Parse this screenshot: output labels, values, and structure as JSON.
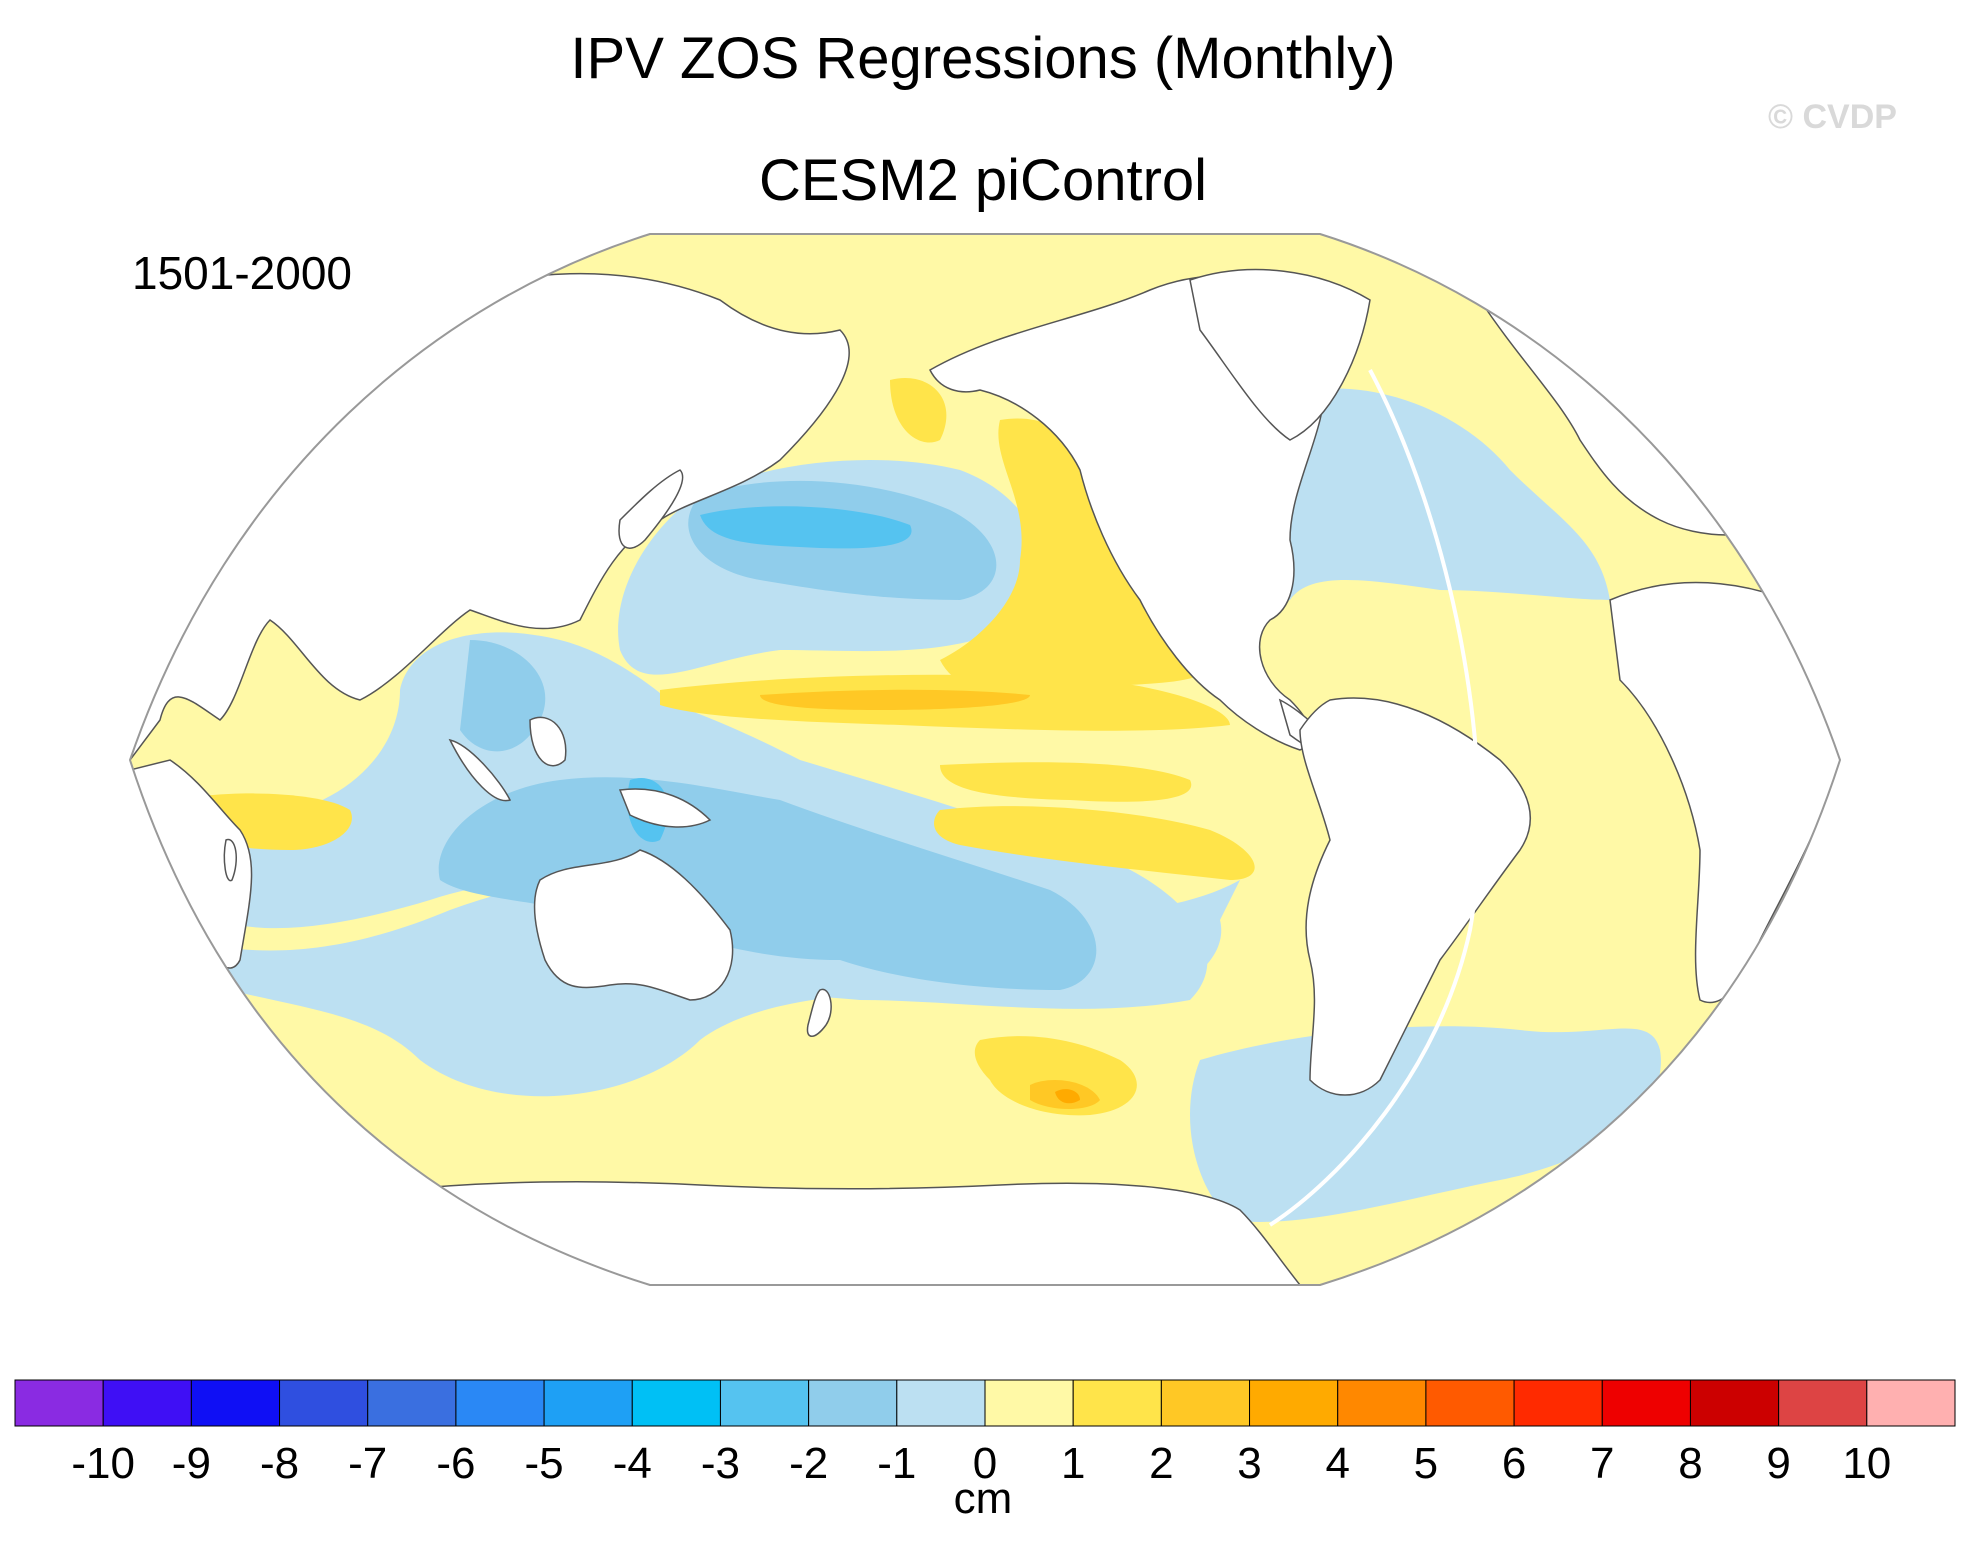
{
  "title": "IPV ZOS Regressions (Monthly)",
  "subtitle": "CESM2 piControl",
  "period": "1501-2000",
  "watermark": "© CVDP",
  "colorbar": {
    "units": "cm",
    "ticks": [
      "-10",
      "-9",
      "-8",
      "-7",
      "-6",
      "-5",
      "-4",
      "-3",
      "-2",
      "-1",
      "0",
      "1",
      "2",
      "3",
      "4",
      "5",
      "6",
      "7",
      "8",
      "9",
      "10"
    ],
    "colors": [
      "#8a2be2",
      "#3f0ff5",
      "#0f0ff5",
      "#2f4fe0",
      "#3a6fe0",
      "#2a88f5",
      "#1ea0f5",
      "#00c0f5",
      "#55c3f0",
      "#90cdeb",
      "#bce0f2",
      "#fff9a6",
      "#ffe44a",
      "#ffc825",
      "#ffaa00",
      "#ff8800",
      "#ff5a00",
      "#ff2a00",
      "#ee0000",
      "#cc0000",
      "#dd4444",
      "#ffb0b0"
    ]
  },
  "map": {
    "projection": "Robinson",
    "variable": "ZOS regression onto IPV index",
    "colors": {
      "ocean_pos1": "#fff9a6",
      "ocean_pos2": "#ffe44a",
      "ocean_pos3": "#ffc825",
      "ocean_pos4": "#ffaa00",
      "ocean_pos5": "#ff8800",
      "ocean_neg1": "#bce0f2",
      "ocean_neg2": "#90cdeb",
      "ocean_neg3": "#55c3f0",
      "ocean_neg4": "#1ea0f5",
      "land": "#ffffff",
      "coast": "#555555"
    }
  }
}
